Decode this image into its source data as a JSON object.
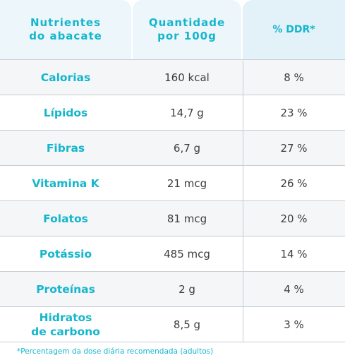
{
  "header": {
    "col1": "Nutrientes\ndo abacate",
    "col2": "Quantidade\npor 100g",
    "col3": "% DDR*"
  },
  "rows": [
    {
      "nutrient": "Calorias",
      "amount": "160 kcal",
      "ddr": "8 %"
    },
    {
      "nutrient": "Lípidos",
      "amount": "14,7 g",
      "ddr": "23 %"
    },
    {
      "nutrient": "Fibras",
      "amount": "6,7 g",
      "ddr": "27 %"
    },
    {
      "nutrient": "Vitamina K",
      "amount": "21 mcg",
      "ddr": "26 %"
    },
    {
      "nutrient": "Folatos",
      "amount": "81 mcg",
      "ddr": "20 %"
    },
    {
      "nutrient": "Potássio",
      "amount": "485 mcg",
      "ddr": "14 %"
    },
    {
      "nutrient": "Proteínas",
      "amount": "2 g",
      "ddr": "4 %"
    },
    {
      "nutrient": "Hidratos\nde carbono",
      "amount": "8,5 g",
      "ddr": "3 %"
    }
  ],
  "footnote": "*Percentagem da dose diária recomendada (adultos)",
  "colors": {
    "accent": "#15b6cc",
    "header_bg": "#ecf6fb",
    "row_alt_bg": "#f4f6f8"
  }
}
